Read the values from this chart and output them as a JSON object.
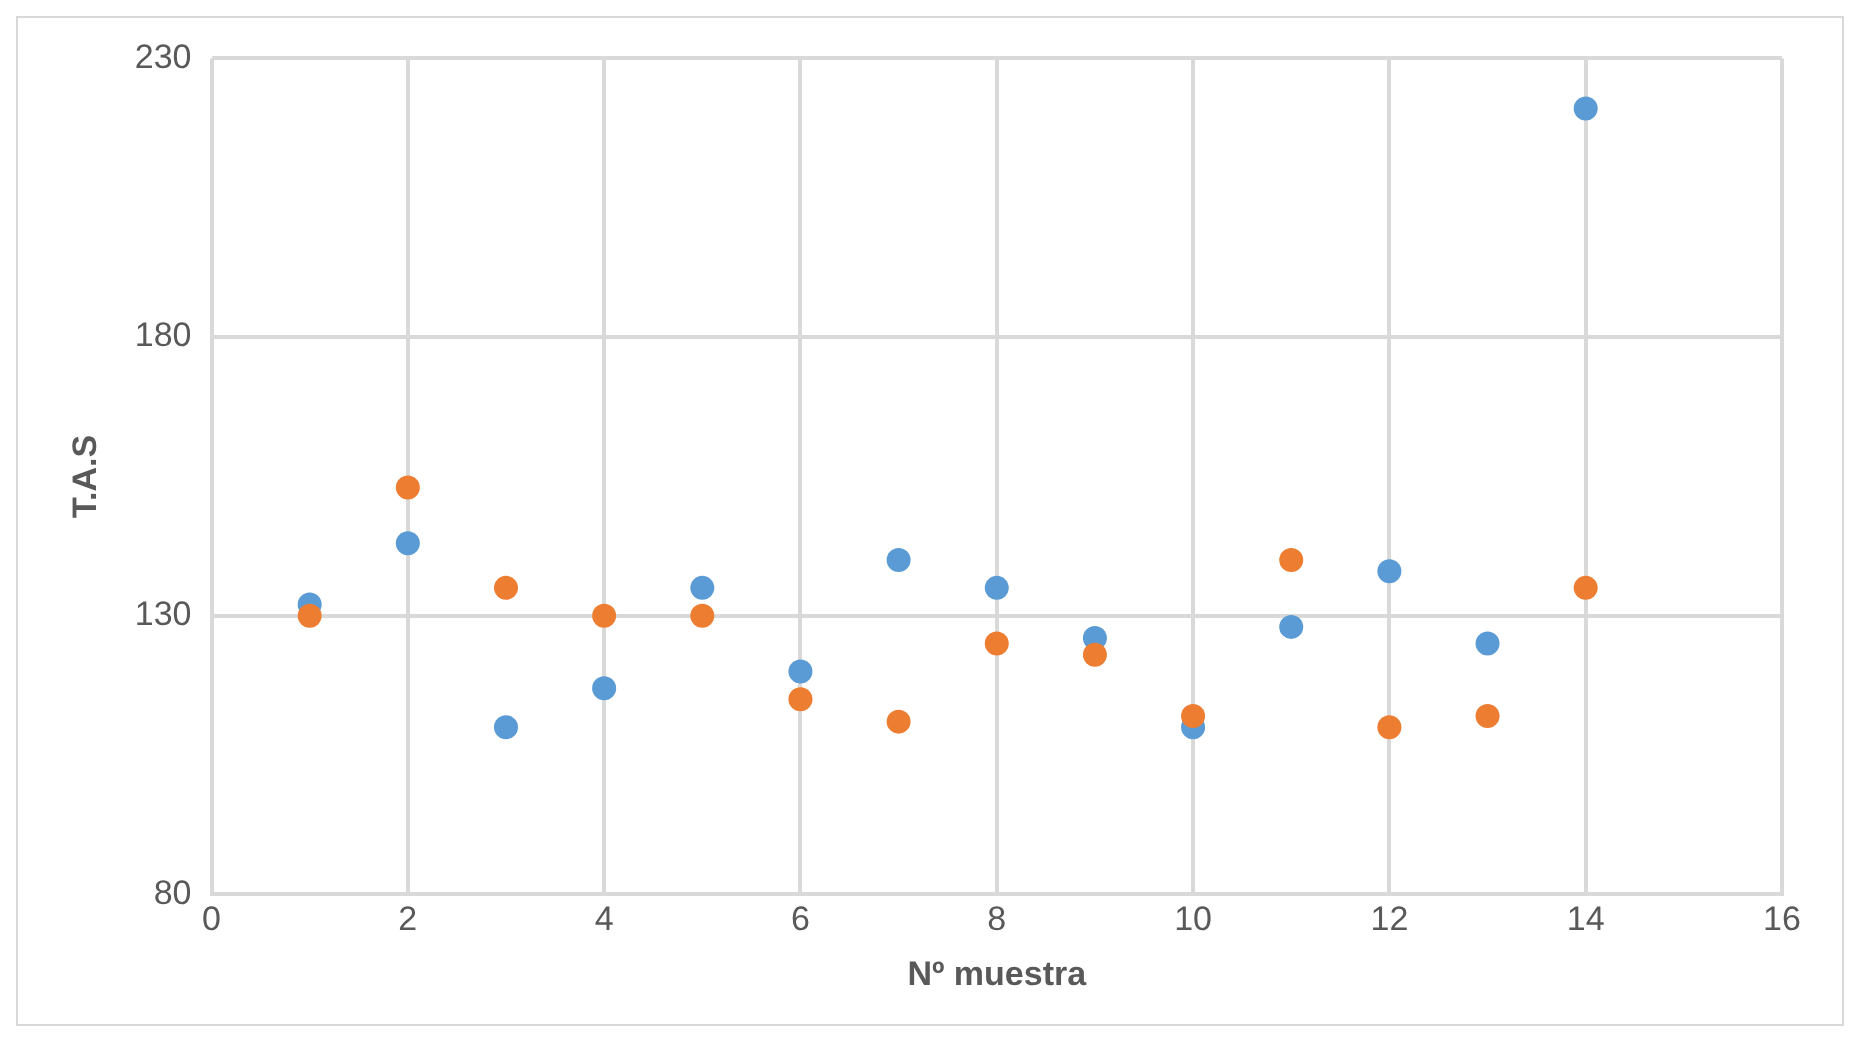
{
  "chart_data": {
    "type": "scatter",
    "xlabel": "Nº muestra",
    "ylabel": "T.A.S",
    "xlim": [
      0,
      16
    ],
    "xticks": [
      0,
      2,
      4,
      6,
      8,
      10,
      12,
      14,
      16
    ],
    "ylim": [
      80,
      230
    ],
    "yticks": [
      80,
      130,
      180,
      230
    ],
    "grid": true,
    "legend": false,
    "marker": "circle",
    "x": [
      1,
      2,
      3,
      4,
      5,
      6,
      7,
      8,
      9,
      10,
      11,
      12,
      13,
      14
    ],
    "series": [
      {
        "color": "#5b9bd5",
        "values": [
          132,
          143,
          110,
          117,
          135,
          120,
          140,
          135,
          126,
          110,
          128,
          138,
          125,
          221
        ]
      },
      {
        "color": "#ed7d31",
        "values": [
          130,
          153,
          135,
          130,
          130,
          115,
          111,
          125,
          123,
          112,
          140,
          110,
          112,
          135
        ]
      }
    ]
  }
}
